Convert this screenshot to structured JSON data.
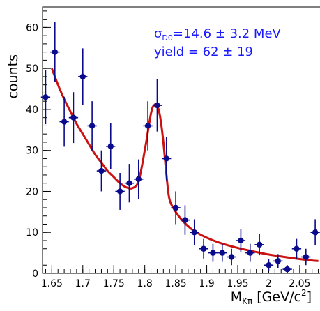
{
  "chart_data": {
    "type": "scatter",
    "ylabel": "counts",
    "xlabel": {
      "main": "M",
      "sub": "Kπ",
      "unit_pre": " [GeV/c",
      "unit_sup": "2",
      "unit_post": "]"
    },
    "annotation": {
      "line1": {
        "symbol": "σ",
        "sub": "D0",
        "text": "=14.6 ± 3.2 MeV"
      },
      "line2": "yield = 62 ± 19"
    },
    "xlim": [
      1.635,
      2.085
    ],
    "ylim": [
      0,
      65
    ],
    "x_ticks": [
      {
        "value": 1.65,
        "label": "1.65"
      },
      {
        "value": 1.7,
        "label": "1.7"
      },
      {
        "value": 1.75,
        "label": "1.75"
      },
      {
        "value": 1.8,
        "label": "1.8"
      },
      {
        "value": 1.85,
        "label": "1.85"
      },
      {
        "value": 1.9,
        "label": "1.9"
      },
      {
        "value": 1.95,
        "label": "1.95"
      },
      {
        "value": 2.0,
        "label": "2"
      },
      {
        "value": 2.05,
        "label": "2.05"
      }
    ],
    "y_ticks": [
      {
        "value": 0,
        "label": "0"
      },
      {
        "value": 10,
        "label": "10"
      },
      {
        "value": 20,
        "label": "20"
      },
      {
        "value": 30,
        "label": "30"
      },
      {
        "value": 40,
        "label": "40"
      },
      {
        "value": 50,
        "label": "50"
      },
      {
        "value": 60,
        "label": "60"
      }
    ],
    "bin_width": 0.015,
    "series": [
      {
        "kind": "points_with_errors",
        "color": "#0a0a8c",
        "points": [
          {
            "x": 1.64,
            "y": 43,
            "err": 6.6
          },
          {
            "x": 1.655,
            "y": 54,
            "err": 7.3
          },
          {
            "x": 1.67,
            "y": 37,
            "err": 6.1
          },
          {
            "x": 1.685,
            "y": 38,
            "err": 6.2
          },
          {
            "x": 1.7,
            "y": 48,
            "err": 6.9
          },
          {
            "x": 1.715,
            "y": 36,
            "err": 6.0
          },
          {
            "x": 1.73,
            "y": 25,
            "err": 5.0
          },
          {
            "x": 1.745,
            "y": 31,
            "err": 5.6
          },
          {
            "x": 1.76,
            "y": 20,
            "err": 4.5
          },
          {
            "x": 1.775,
            "y": 22,
            "err": 4.7
          },
          {
            "x": 1.79,
            "y": 23,
            "err": 4.8
          },
          {
            "x": 1.805,
            "y": 36,
            "err": 6.0
          },
          {
            "x": 1.82,
            "y": 41,
            "err": 6.4
          },
          {
            "x": 1.835,
            "y": 28,
            "err": 5.3
          },
          {
            "x": 1.85,
            "y": 16,
            "err": 4.0
          },
          {
            "x": 1.865,
            "y": 13,
            "err": 3.6
          },
          {
            "x": 1.88,
            "y": 10,
            "err": 3.2
          },
          {
            "x": 1.895,
            "y": 6,
            "err": 2.4
          },
          {
            "x": 1.91,
            "y": 5,
            "err": 2.2
          },
          {
            "x": 1.925,
            "y": 5,
            "err": 2.2
          },
          {
            "x": 1.94,
            "y": 4,
            "err": 2.0
          },
          {
            "x": 1.955,
            "y": 8,
            "err": 2.8
          },
          {
            "x": 1.97,
            "y": 5,
            "err": 2.2
          },
          {
            "x": 1.985,
            "y": 7,
            "err": 2.6
          },
          {
            "x": 2.0,
            "y": 2,
            "err": 1.4
          },
          {
            "x": 2.015,
            "y": 3,
            "err": 1.7
          },
          {
            "x": 2.03,
            "y": 1,
            "err": 1.0
          },
          {
            "x": 2.045,
            "y": 6,
            "err": 2.4
          },
          {
            "x": 2.06,
            "y": 4,
            "err": 2.0
          },
          {
            "x": 2.075,
            "y": 10,
            "err": 3.2
          }
        ]
      },
      {
        "kind": "fit_curve",
        "color": "#cc1111",
        "x": [
          1.65,
          1.66,
          1.67,
          1.68,
          1.69,
          1.7,
          1.71,
          1.72,
          1.73,
          1.74,
          1.75,
          1.76,
          1.77,
          1.78,
          1.79,
          1.8,
          1.81,
          1.815,
          1.82,
          1.825,
          1.83,
          1.835,
          1.84,
          1.85,
          1.86,
          1.87,
          1.88,
          1.9,
          1.92,
          1.95,
          1.98,
          2.0,
          2.03,
          2.06,
          2.08
        ],
        "y": [
          50,
          46,
          42.5,
          39.5,
          36.5,
          34,
          31.5,
          29,
          27,
          25,
          23.5,
          22,
          21,
          20.8,
          22.5,
          30,
          39,
          41,
          41,
          38,
          32,
          24,
          18,
          15,
          13,
          11.5,
          10.3,
          8.7,
          7.5,
          6.2,
          5.2,
          4.6,
          3.9,
          3.3,
          3.0
        ]
      }
    ],
    "grid": false,
    "legend": "none"
  }
}
